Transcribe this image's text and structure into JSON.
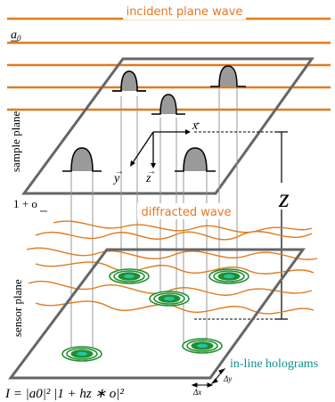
{
  "labels": {
    "incident_wave": "incident plane wave",
    "a0": "a",
    "a0_sub": "0",
    "sample_plane": "sample plane",
    "sensor_plane": "sensor plane",
    "one_plus_o": "1 + o",
    "diffracted_wave": "diffracted wave",
    "z_big": "z",
    "axis_x": "x",
    "axis_y": "y",
    "axis_z": "z",
    "in_line_holograms": "in-line holograms",
    "delta_x": "Δx",
    "delta_y": "Δy",
    "equation": "I = |a0|² |1 + hz ∗ o|²"
  },
  "colors": {
    "wave": "#e07a1f",
    "plane": "#666666",
    "hologram_outer": "#1f8f2f",
    "hologram_inner": "#27c2a8",
    "label_teal": "#0a8f8f",
    "label_orange": "#e8761e"
  }
}
